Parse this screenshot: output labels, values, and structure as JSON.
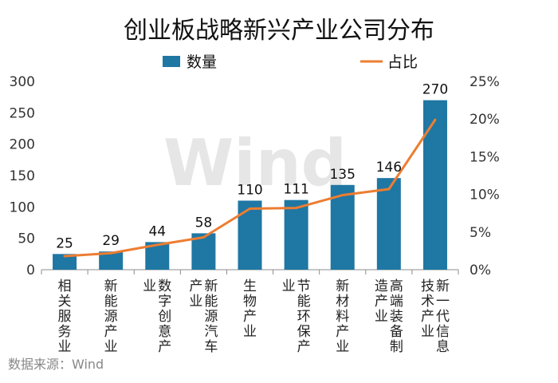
{
  "chart_data": {
    "type": "bar",
    "title": "创业板战略新兴产业公司分布",
    "categories": [
      [
        "相",
        "关",
        "服",
        "务",
        "业"
      ],
      [
        "新",
        "能",
        "源",
        "产",
        "业"
      ],
      [
        "数",
        "字",
        "创",
        "意",
        "产",
        "业"
      ],
      [
        "新",
        "能",
        "源",
        "汽",
        "车",
        "产",
        "业"
      ],
      [
        "生",
        "物",
        "产",
        "业"
      ],
      [
        "节",
        "能",
        "环",
        "保",
        "产",
        "业"
      ],
      [
        "新",
        "材",
        "料",
        "产",
        "业"
      ],
      [
        "高",
        "端",
        "装",
        "备",
        "制",
        "造",
        "产",
        "业"
      ],
      [
        "新",
        "一",
        "代",
        "信",
        "息",
        "技",
        "术",
        "产",
        "业"
      ]
    ],
    "series": [
      {
        "name": "数量",
        "type": "bar",
        "axis": "left",
        "values": [
          25,
          29,
          44,
          58,
          110,
          111,
          135,
          146,
          270
        ],
        "color": "#1f77a3"
      },
      {
        "name": "占比",
        "type": "line",
        "axis": "right",
        "values": [
          1.8,
          2.2,
          3.3,
          4.3,
          8.1,
          8.2,
          9.9,
          10.7,
          19.9
        ],
        "color": "#ed7d31"
      }
    ],
    "y_left": {
      "min": 0,
      "max": 300,
      "ticks": [
        "0",
        "50",
        "100",
        "150",
        "200",
        "250",
        "300"
      ]
    },
    "y_right": {
      "min": 0,
      "max": 25,
      "ticks": [
        "0%",
        "5%",
        "10%",
        "15%",
        "20%",
        "25%"
      ]
    },
    "legend_position": "top",
    "grid": false
  },
  "watermark": "Wind",
  "source": "数据来源：Wind"
}
